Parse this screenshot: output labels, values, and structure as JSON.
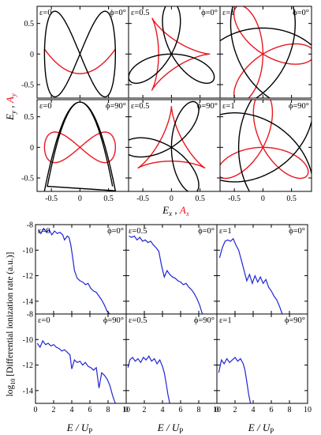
{
  "colors": {
    "e_curve": "#000000",
    "a_curve": "#e8171f",
    "spectrum": "#1f26d6",
    "frame": "#000000"
  },
  "chart_data": [
    {
      "type": "line",
      "name": "field-trajectories",
      "ylabel": {
        "main": "E",
        "sub": "y",
        "sep": " , ",
        "alt": "A",
        "alt_sub": "y"
      },
      "xlabel": {
        "main": "E",
        "sub": "x",
        "sep": " , ",
        "alt": "A",
        "alt_sub": "x"
      },
      "xlim": [
        -0.75,
        0.85
      ],
      "ylim": [
        -0.72,
        0.78
      ],
      "xticks": [
        -0.5,
        0,
        0.5
      ],
      "xtick_labels": [
        "-0.5",
        "0",
        "0.5"
      ],
      "yticks": [
        0.5,
        0,
        -0.5
      ],
      "ytick_labels": [
        "0.5",
        "0",
        "-0.5"
      ],
      "panels": [
        {
          "eps_label": "ε=0",
          "phi_label": "ϕ=0°",
          "eps": 0,
          "phi": 0
        },
        {
          "eps_label": "ε=0.5",
          "phi_label": "ϕ=0°",
          "eps": 0.5,
          "phi": 0
        },
        {
          "eps_label": "ε=1",
          "phi_label": "ϕ=0°",
          "eps": 1,
          "phi": 0
        },
        {
          "eps_label": "ε=0",
          "phi_label": "ϕ=90°",
          "eps": 0,
          "phi": 90
        },
        {
          "eps_label": "ε=0.5",
          "phi_label": "ϕ=90°",
          "eps": 0.5,
          "phi": 90
        },
        {
          "eps_label": "ε=1",
          "phi_label": "ϕ=90°",
          "eps": 1,
          "phi": 90
        }
      ]
    },
    {
      "type": "line",
      "name": "ionization-spectra",
      "ylabel": {
        "pre": "log",
        "pre_sub": "10",
        "rest": " [Differential ionization rate (a.u.)]"
      },
      "xlabel": {
        "main": "E / U",
        "sub": "P"
      },
      "xlim": [
        0,
        10
      ],
      "ylim": [
        -15,
        -8
      ],
      "xticks": [
        0,
        2,
        4,
        6,
        8,
        10
      ],
      "xtick_labels": [
        "0",
        "2",
        "4",
        "6",
        "8",
        "10"
      ],
      "yticks": [
        -8,
        -10,
        -12,
        -14
      ],
      "ytick_labels": [
        "-8",
        "-10",
        "-12",
        "-14"
      ],
      "panels": [
        {
          "eps_label": "ε=0",
          "phi_label": "ϕ=0°",
          "x": [
            0.3,
            0.6,
            0.9,
            1.2,
            1.5,
            1.8,
            2.1,
            2.4,
            2.7,
            3.0,
            3.2,
            3.5,
            3.7,
            3.9,
            4.1,
            4.3,
            4.6,
            4.9,
            5.2,
            5.5,
            5.8,
            6.1,
            6.4,
            6.7,
            7.0,
            7.3,
            7.6,
            7.9,
            8.2
          ],
          "y": [
            -8.4,
            -8.7,
            -8.3,
            -8.6,
            -8.4,
            -8.8,
            -8.5,
            -8.7,
            -8.6,
            -8.8,
            -9.2,
            -8.9,
            -9.0,
            -9.6,
            -10.6,
            -11.6,
            -12.2,
            -12.4,
            -12.5,
            -12.7,
            -12.6,
            -13.0,
            -13.2,
            -13.3,
            -13.6,
            -13.9,
            -14.3,
            -14.8,
            -15.0
          ]
        },
        {
          "eps_label": "ε=0.5",
          "phi_label": "ϕ=0°",
          "x": [
            0.3,
            0.6,
            0.9,
            1.2,
            1.5,
            1.8,
            2.1,
            2.4,
            2.7,
            3.0,
            3.3,
            3.6,
            3.9,
            4.2,
            4.5,
            4.8,
            5.1,
            5.4,
            5.7,
            6.0,
            6.3,
            6.6,
            6.9,
            7.2,
            7.5,
            7.8,
            8.1,
            8.4
          ],
          "y": [
            -8.9,
            -9.0,
            -8.9,
            -9.2,
            -9.0,
            -9.3,
            -9.2,
            -9.4,
            -9.3,
            -9.6,
            -9.8,
            -10.1,
            -11.2,
            -12.1,
            -11.6,
            -11.9,
            -12.1,
            -12.2,
            -12.4,
            -12.5,
            -12.7,
            -12.6,
            -12.9,
            -13.1,
            -13.4,
            -13.8,
            -14.3,
            -15.0
          ]
        },
        {
          "eps_label": "ε=1",
          "phi_label": "ϕ=0°",
          "x": [
            0.3,
            0.6,
            0.9,
            1.2,
            1.5,
            1.8,
            2.1,
            2.4,
            2.7,
            3.0,
            3.3,
            3.6,
            3.9,
            4.2,
            4.5,
            4.8,
            5.1,
            5.4,
            5.7,
            6.0,
            6.3,
            6.6,
            6.9,
            7.2
          ],
          "y": [
            -10.6,
            -9.8,
            -9.3,
            -9.2,
            -9.3,
            -9.1,
            -9.6,
            -10.0,
            -10.8,
            -11.6,
            -12.4,
            -11.9,
            -12.6,
            -12.0,
            -12.5,
            -12.1,
            -12.6,
            -12.3,
            -12.9,
            -13.2,
            -13.6,
            -13.9,
            -14.4,
            -15.0
          ]
        },
        {
          "eps_label": "ε=0",
          "phi_label": "ϕ=90°",
          "x": [
            0.2,
            0.5,
            0.8,
            1.1,
            1.4,
            1.7,
            2.0,
            2.3,
            2.6,
            2.9,
            3.2,
            3.5,
            3.8,
            4.0,
            4.3,
            4.6,
            4.9,
            5.2,
            5.5,
            5.8,
            6.1,
            6.4,
            6.7,
            7.0,
            7.3,
            7.6,
            7.9,
            8.2,
            8.5,
            8.8
          ],
          "y": [
            -10.3,
            -10.6,
            -10.1,
            -10.4,
            -10.3,
            -10.5,
            -10.4,
            -10.6,
            -10.7,
            -10.9,
            -10.8,
            -11.0,
            -11.2,
            -12.3,
            -11.6,
            -11.8,
            -11.7,
            -12.0,
            -11.8,
            -12.1,
            -12.2,
            -12.4,
            -12.2,
            -13.8,
            -12.6,
            -12.8,
            -13.1,
            -13.6,
            -14.4,
            -15.0
          ]
        },
        {
          "eps_label": "ε=0.5",
          "phi_label": "ϕ=90°",
          "x": [
            0.2,
            0.4,
            0.7,
            1.0,
            1.3,
            1.6,
            1.9,
            2.2,
            2.5,
            2.8,
            3.1,
            3.4,
            3.7,
            4.0,
            4.2,
            4.4,
            4.6,
            4.8
          ],
          "y": [
            -12.2,
            -11.6,
            -11.4,
            -11.7,
            -11.5,
            -11.8,
            -11.4,
            -11.6,
            -11.3,
            -11.7,
            -11.5,
            -11.9,
            -11.6,
            -12.1,
            -12.6,
            -13.4,
            -14.3,
            -15.0
          ]
        },
        {
          "eps_label": "ε=1",
          "phi_label": "ϕ=90°",
          "x": [
            0.2,
            0.5,
            0.8,
            1.1,
            1.4,
            1.7,
            2.0,
            2.3,
            2.6,
            2.9,
            3.1,
            3.3,
            3.5,
            3.7
          ],
          "y": [
            -12.6,
            -11.6,
            -11.9,
            -11.5,
            -11.8,
            -11.6,
            -11.4,
            -11.7,
            -11.5,
            -11.9,
            -12.4,
            -13.3,
            -14.3,
            -15.0
          ]
        }
      ]
    }
  ]
}
